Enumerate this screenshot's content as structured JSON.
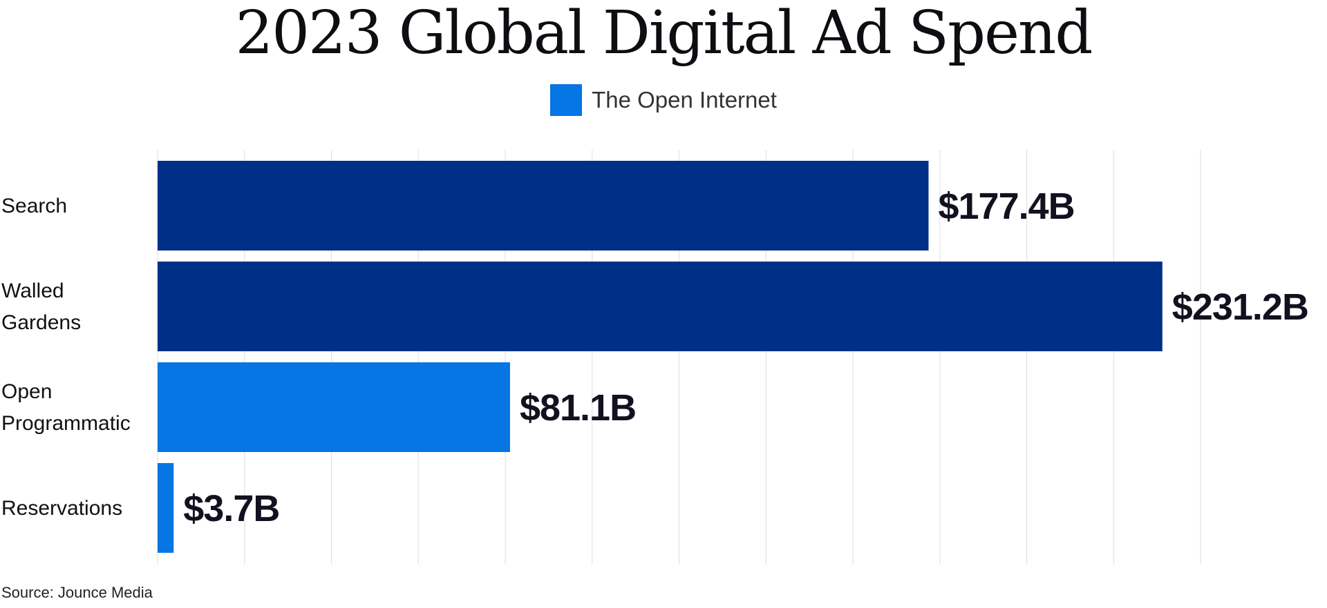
{
  "chart_data": {
    "type": "bar",
    "orientation": "horizontal",
    "title": "2023 Global Digital Ad Spend",
    "categories": [
      [
        "Search"
      ],
      [
        "Walled",
        "Gardens"
      ],
      [
        "Open",
        "Programmatic"
      ],
      [
        "Reservations"
      ]
    ],
    "values": [
      177.4,
      231.2,
      81.1,
      3.7
    ],
    "value_labels": [
      "$177.4B",
      "$231.2B",
      "$81.1B",
      "$3.7B"
    ],
    "unit": "$B",
    "bar_colors": [
      "#002f87",
      "#002f87",
      "#0576e4",
      "#0576e4"
    ],
    "legend": [
      {
        "name": "The Open Internet",
        "color": "#0576e4"
      }
    ],
    "legend_position": "top",
    "xlim": [
      0,
      240
    ],
    "x_grid_step": 20,
    "grid": true,
    "x_tick_labels_shown": false,
    "source": "Source: Jounce Media"
  }
}
